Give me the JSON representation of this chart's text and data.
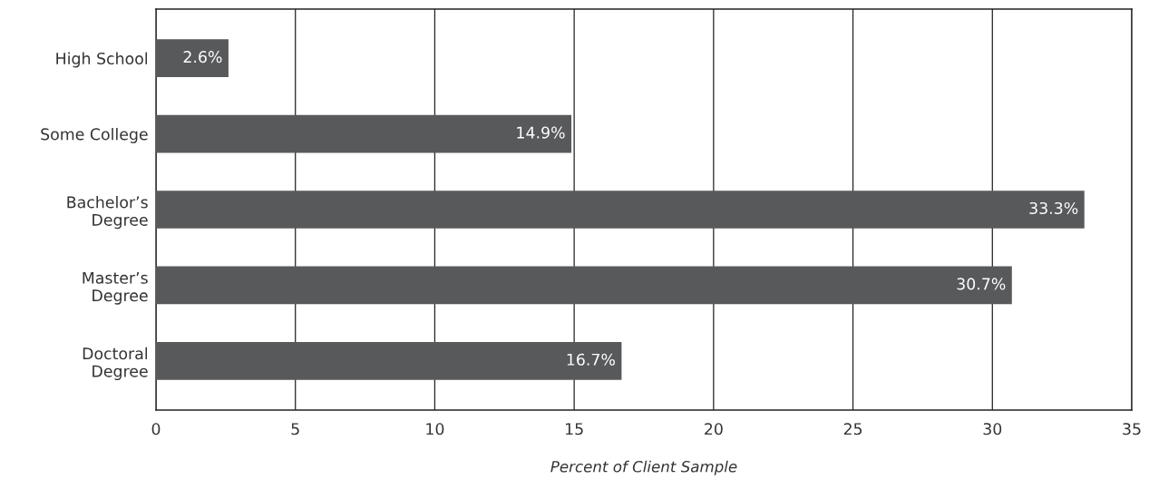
{
  "chart_data": {
    "type": "bar",
    "orientation": "horizontal",
    "categories": [
      "High School",
      "Some College",
      "Bachelor’s\nDegree",
      "Master’s\nDegree",
      "Doctoral\nDegree"
    ],
    "values": [
      2.6,
      14.9,
      33.3,
      30.7,
      16.7
    ],
    "value_labels": [
      "2.6%",
      "14.9%",
      "33.3%",
      "30.7%",
      "16.7%"
    ],
    "color": "#58595b",
    "xlabel": "Percent of Client Sample",
    "xlim": [
      0,
      35
    ],
    "xticks": [
      0,
      5,
      10,
      15,
      20,
      25,
      30,
      35
    ],
    "grid": "x"
  }
}
